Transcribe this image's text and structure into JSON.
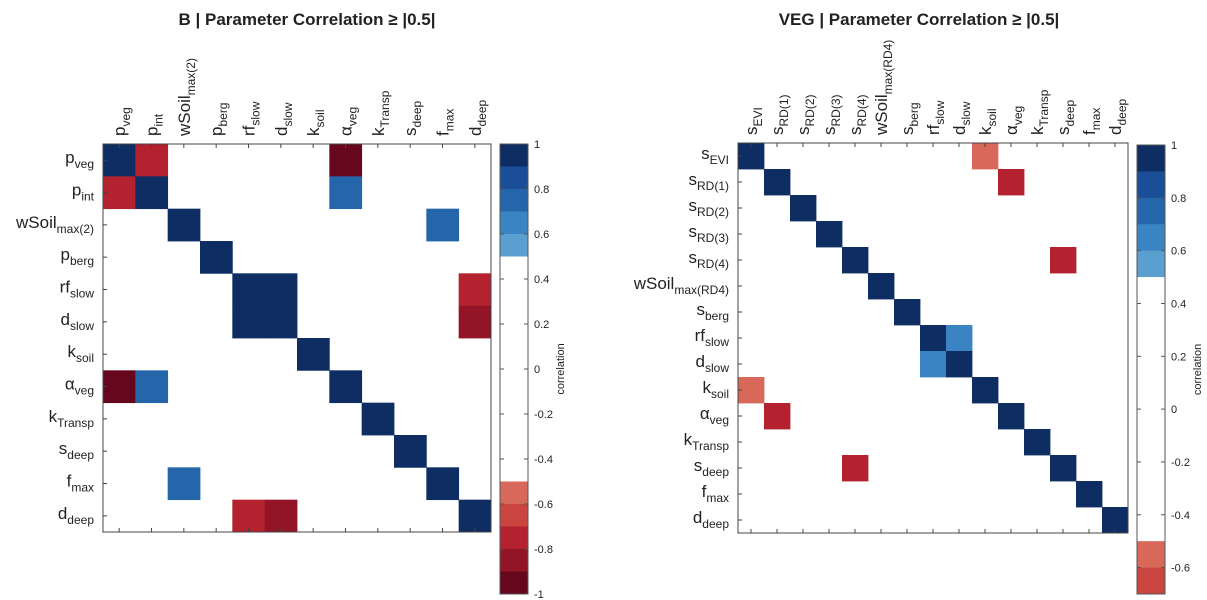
{
  "chart_data": [
    {
      "type": "heatmap",
      "title": "B | Parameter Correlation ≥ |0.5|",
      "parameters": [
        {
          "base": "p",
          "sub": "veg"
        },
        {
          "base": "p",
          "sub": "int"
        },
        {
          "base": "wSoil",
          "sub": "max(2)"
        },
        {
          "base": "p",
          "sub": "berg"
        },
        {
          "base": "rf",
          "sub": "slow"
        },
        {
          "base": "d",
          "sub": "slow"
        },
        {
          "base": "k",
          "sub": "soil"
        },
        {
          "base": "α",
          "sub": "veg"
        },
        {
          "base": "k",
          "sub": "Transp"
        },
        {
          "base": "s",
          "sub": "deep"
        },
        {
          "base": "f",
          "sub": "max"
        },
        {
          "base": "d",
          "sub": "deep"
        }
      ],
      "diagonal": 1.0,
      "correlations": [
        {
          "i": 0,
          "j": 1,
          "value": -0.7
        },
        {
          "i": 0,
          "j": 7,
          "value": -0.95
        },
        {
          "i": 1,
          "j": 7,
          "value": 0.7
        },
        {
          "i": 2,
          "j": 10,
          "value": 0.7
        },
        {
          "i": 4,
          "j": 5,
          "value": 1.0
        },
        {
          "i": 4,
          "j": 11,
          "value": -0.7
        },
        {
          "i": 5,
          "j": 11,
          "value": -0.8
        }
      ],
      "colorbar": {
        "label": "correlation",
        "range": [
          -1,
          1
        ],
        "ticks": [
          "1",
          "0.8",
          "0.6",
          "0.4",
          "0.2",
          "0",
          "-0.2",
          "-0.4",
          "-0.6",
          "-0.8",
          "-1"
        ]
      }
    },
    {
      "type": "heatmap",
      "title": "VEG | Parameter Correlation ≥ |0.5|",
      "parameters": [
        {
          "base": "s",
          "sub": "EVI"
        },
        {
          "base": "s",
          "sub": "RD(1)"
        },
        {
          "base": "s",
          "sub": "RD(2)"
        },
        {
          "base": "s",
          "sub": "RD(3)"
        },
        {
          "base": "s",
          "sub": "RD(4)"
        },
        {
          "base": "wSoil",
          "sub": "max(RD4)"
        },
        {
          "base": "s",
          "sub": "berg"
        },
        {
          "base": "rf",
          "sub": "slow"
        },
        {
          "base": "d",
          "sub": "slow"
        },
        {
          "base": "k",
          "sub": "soil"
        },
        {
          "base": "α",
          "sub": "veg"
        },
        {
          "base": "k",
          "sub": "Transp"
        },
        {
          "base": "s",
          "sub": "deep"
        },
        {
          "base": "f",
          "sub": "max"
        },
        {
          "base": "d",
          "sub": "deep"
        }
      ],
      "diagonal": 1.0,
      "correlations": [
        {
          "i": 0,
          "j": 9,
          "value": -0.55
        },
        {
          "i": 1,
          "j": 10,
          "value": -0.7
        },
        {
          "i": 4,
          "j": 12,
          "value": -0.7
        },
        {
          "i": 7,
          "j": 8,
          "value": 0.65
        }
      ],
      "colorbar": {
        "label": "correlation",
        "range": [
          -0.7,
          1
        ],
        "ticks": [
          "1",
          "0.8",
          "0.6",
          "0.4",
          "0.2",
          "0",
          "-0.2",
          "-0.4",
          "-0.6"
        ]
      }
    }
  ]
}
